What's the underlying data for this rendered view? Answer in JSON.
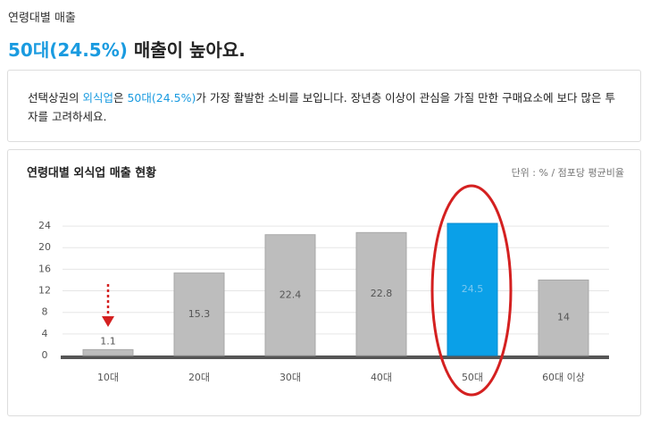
{
  "header": {
    "label": "연령대별 매출",
    "headline": {
      "highlight": "50대(24.5%)",
      "rest": " 매출이 높아요."
    }
  },
  "description": {
    "parts": [
      "선택상권의 ",
      "외식업",
      "은 ",
      "50대(24.5%)",
      "가 가장 활발한 소비를 보입니다. 장년층 이상이 관심을 가질 만한 구매요소에 보다 많은 투자를 고려하세요."
    ]
  },
  "chart_data": {
    "type": "bar",
    "title": "연령대별 외식업 매출 현황",
    "unit": "단위 : % / 점포당 평균비율",
    "categories": [
      "10대",
      "20대",
      "30대",
      "40대",
      "50대",
      "60대 이상"
    ],
    "values": [
      1.1,
      15.3,
      22.4,
      22.8,
      24.5,
      14
    ],
    "color": "#bdbdbd",
    "highlight_color": "#0aa0e8",
    "highlight_index": 4,
    "ylim": [
      0,
      26
    ],
    "yticks": [
      0,
      4,
      8,
      12,
      16,
      20,
      24
    ],
    "grid": true
  }
}
